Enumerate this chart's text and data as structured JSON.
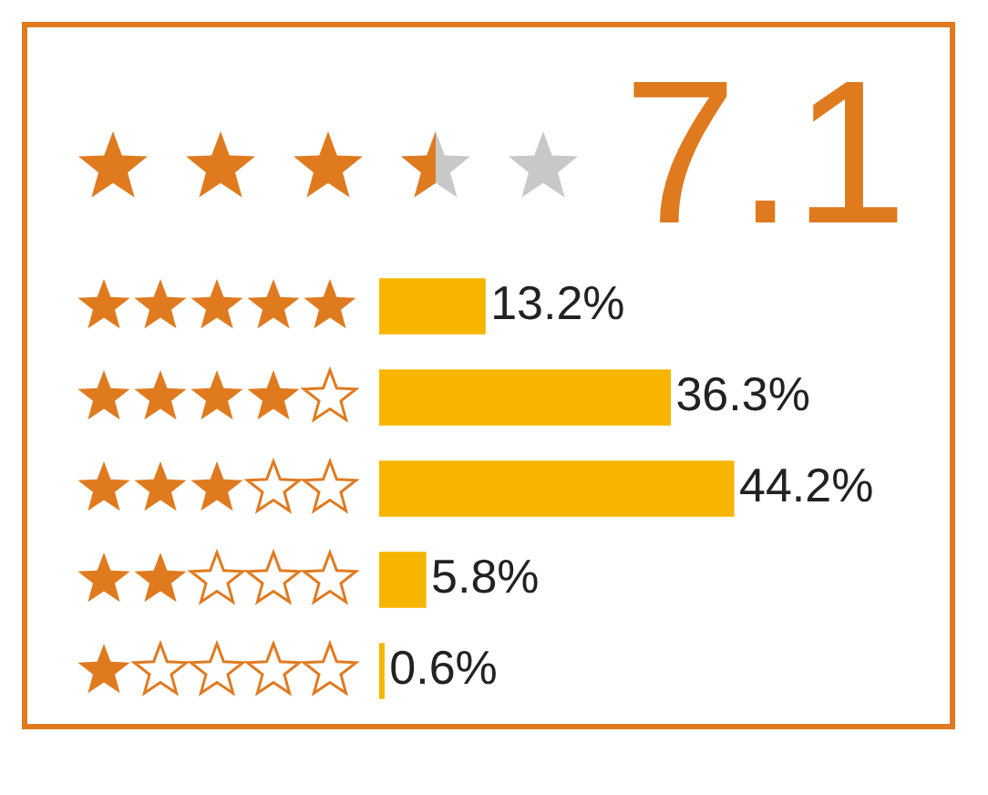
{
  "chart_data": {
    "type": "bar",
    "orientation": "horizontal",
    "annotations": [
      "7.1"
    ],
    "categories": [
      null,
      null,
      null,
      null,
      null
    ],
    "values": [
      13.2,
      36.3,
      44.2,
      5.8,
      0.6
    ],
    "value_labels": [
      "13.2%",
      "36.3%",
      "44.2%",
      "5.8%",
      "0.6%"
    ],
    "color": "#f7b500",
    "tick_labels": false
  }
}
